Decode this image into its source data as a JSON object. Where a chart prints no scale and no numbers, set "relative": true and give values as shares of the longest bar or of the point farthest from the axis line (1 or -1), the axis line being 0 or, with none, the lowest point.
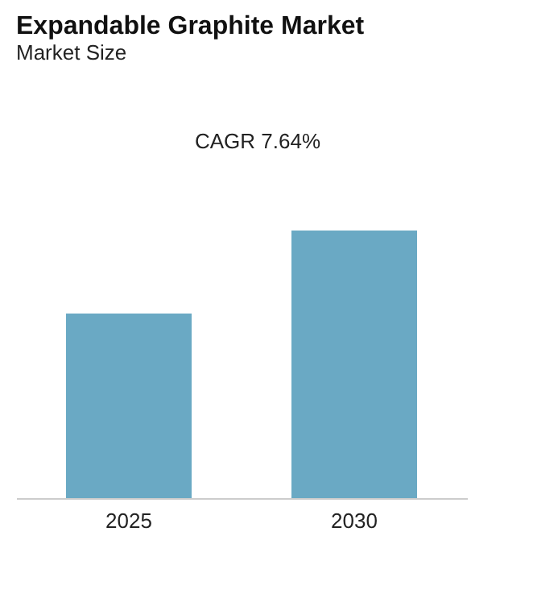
{
  "chart_data": {
    "type": "bar",
    "title": "Expandable Graphite Market",
    "subtitle": "Market Size",
    "categories": [
      "2025",
      "2030"
    ],
    "values": [
      0.69,
      1
    ],
    "color": "#6aa9c4",
    "relative": true,
    "annotations": [
      "CAGR 7.64%"
    ]
  }
}
